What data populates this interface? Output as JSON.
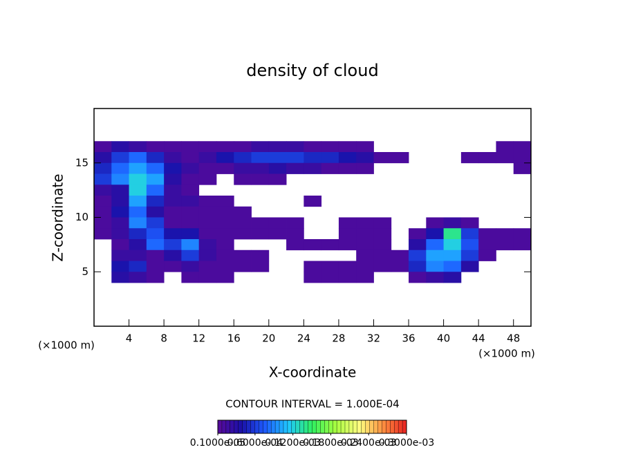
{
  "chart_data": {
    "type": "heatmap",
    "title": "density of cloud",
    "x_label": "X-coordinate",
    "y_label": "Z-coordinate",
    "x_unit": "(×1000 m)",
    "y_unit": "(×1000 m)",
    "annotation": "CONTOUR INTERVAL = 1.000E-04",
    "xlim": [
      0,
      50
    ],
    "ylim": [
      0,
      20
    ],
    "xticks": [
      4,
      8,
      12,
      16,
      20,
      24,
      28,
      32,
      36,
      40,
      44,
      48
    ],
    "yticks": [
      5,
      10,
      15
    ],
    "x": [
      1,
      3,
      5,
      7,
      9,
      11,
      13,
      15,
      17,
      19,
      21,
      23,
      25,
      27,
      29,
      31,
      33,
      35,
      37,
      39,
      41,
      43,
      45,
      47,
      49
    ],
    "y": [
      16.5,
      15.5,
      14.5,
      13.5,
      12.5,
      11.5,
      10.5,
      9.5,
      8.5,
      7.5,
      6.5,
      5.5,
      4.5
    ],
    "values": [
      [
        1e-05,
        3e-05,
        2e-05,
        1e-05,
        1e-05,
        1e-05,
        1e-05,
        1e-05,
        1e-05,
        2e-05,
        2e-05,
        2e-05,
        1e-05,
        1e-05,
        1e-05,
        1e-05,
        0,
        0,
        0,
        0,
        0,
        0,
        0,
        1e-05,
        1e-05
      ],
      [
        3e-05,
        6e-05,
        8e-05,
        5e-05,
        2e-05,
        1e-05,
        2e-05,
        4e-05,
        5e-05,
        6e-05,
        6e-05,
        6e-05,
        5e-05,
        5e-05,
        4e-05,
        3e-05,
        1e-05,
        1e-05,
        0,
        0,
        0,
        1e-05,
        1e-05,
        1e-05,
        1e-05
      ],
      [
        5e-05,
        8e-05,
        0.0001,
        8e-05,
        4e-05,
        2e-05,
        1e-05,
        1e-05,
        2e-05,
        2e-05,
        3e-05,
        2e-05,
        2e-05,
        1e-05,
        1e-05,
        1e-05,
        0,
        0,
        0,
        0,
        0,
        0,
        0,
        0,
        1e-05
      ],
      [
        6e-05,
        9e-05,
        0.00012,
        0.0001,
        3e-05,
        1e-05,
        1e-05,
        0,
        1e-05,
        1e-05,
        1e-05,
        0,
        0,
        0,
        0,
        0,
        0,
        0,
        0,
        0,
        0,
        0,
        0,
        0,
        0
      ],
      [
        2e-05,
        3e-05,
        0.00012,
        8e-05,
        2e-05,
        1e-05,
        0,
        0,
        0,
        0,
        0,
        0,
        0,
        0,
        0,
        0,
        0,
        0,
        0,
        0,
        0,
        0,
        0,
        0,
        0
      ],
      [
        1e-05,
        3e-05,
        0.0001,
        5e-05,
        2e-05,
        2e-05,
        1e-05,
        1e-05,
        0,
        0,
        0,
        0,
        1e-05,
        0,
        0,
        0,
        0,
        0,
        0,
        0,
        0,
        0,
        0,
        0,
        0
      ],
      [
        1e-05,
        4e-05,
        8e-05,
        3e-05,
        1e-05,
        1e-05,
        1e-05,
        1e-05,
        1e-05,
        0,
        0,
        0,
        0,
        0,
        0,
        0,
        0,
        0,
        0,
        0,
        0,
        0,
        0,
        0,
        0
      ],
      [
        1e-05,
        2e-05,
        9e-05,
        6e-05,
        1e-05,
        1e-05,
        1e-05,
        1e-05,
        1e-05,
        1e-05,
        1e-05,
        1e-05,
        0,
        0,
        1e-05,
        1e-05,
        1e-05,
        0,
        0,
        1e-05,
        2e-05,
        1e-05,
        0,
        0,
        0
      ],
      [
        1e-05,
        2e-05,
        5e-05,
        7e-05,
        4e-05,
        4e-05,
        1e-05,
        1e-05,
        1e-05,
        1e-05,
        1e-05,
        1e-05,
        0,
        0,
        1e-05,
        1e-05,
        1e-05,
        0,
        1e-05,
        4e-05,
        0.00014,
        6e-05,
        1e-05,
        1e-05,
        1e-05
      ],
      [
        0,
        1e-05,
        3e-05,
        8e-05,
        6e-05,
        9e-05,
        2e-05,
        1e-05,
        0,
        0,
        0,
        1e-05,
        1e-05,
        1e-05,
        1e-05,
        1e-05,
        1e-05,
        0,
        3e-05,
        8e-05,
        0.00012,
        7e-05,
        1e-05,
        1e-05,
        1e-05
      ],
      [
        0,
        2e-05,
        2e-05,
        1e-05,
        3e-05,
        6e-05,
        2e-05,
        1e-05,
        1e-05,
        1e-05,
        0,
        0,
        0,
        0,
        0,
        1e-05,
        1e-05,
        1e-05,
        6e-05,
        0.0001,
        0.0001,
        6e-05,
        1e-05,
        0,
        0
      ],
      [
        0,
        4e-05,
        5e-05,
        1e-05,
        1e-05,
        2e-05,
        1e-05,
        1e-05,
        1e-05,
        1e-05,
        0,
        0,
        1e-05,
        1e-05,
        1e-05,
        1e-05,
        1e-05,
        1e-05,
        5e-05,
        9e-05,
        8e-05,
        3e-05,
        0,
        0,
        0
      ],
      [
        0,
        3e-05,
        2e-05,
        1e-05,
        0,
        1e-05,
        1e-05,
        1e-05,
        0,
        0,
        0,
        0,
        1e-05,
        1e-05,
        1e-05,
        1e-05,
        0,
        0,
        1e-05,
        2e-05,
        3e-05,
        0,
        0,
        0,
        0
      ]
    ],
    "colormap": [
      "#5a0a9a",
      "#1a10a8",
      "#1e5cff",
      "#20c8ff",
      "#30f060",
      "#a8ff40",
      "#ffff80",
      "#ff9040",
      "#e82020"
    ],
    "clim": [
      1e-06,
      0.0003
    ],
    "colorbar_ticks": [
      {
        "value": 1e-06,
        "label": "0.1000e-05"
      },
      {
        "value": 6e-05,
        "label": "0.6000e-04"
      },
      {
        "value": 0.00012,
        "label": "0.1200e-03"
      },
      {
        "value": 0.00018,
        "label": "0.1800e-03"
      },
      {
        "value": 0.00024,
        "label": "0.2400e-03"
      },
      {
        "value": 0.0003,
        "label": "0.3000e-03"
      }
    ]
  }
}
